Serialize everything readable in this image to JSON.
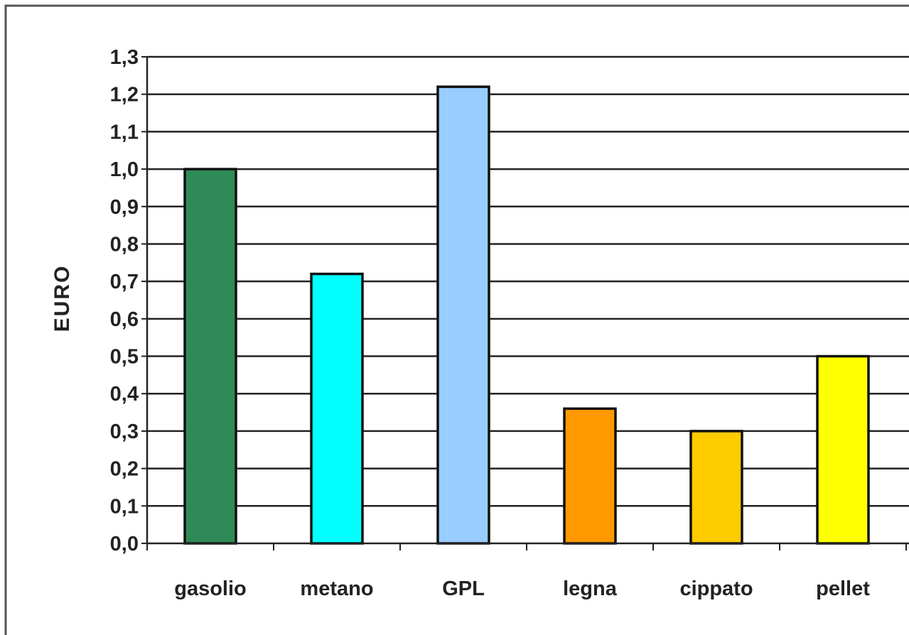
{
  "chart_data": {
    "type": "bar",
    "title": "",
    "xlabel": "",
    "ylabel": "EURO",
    "categories": [
      "gasolio",
      "metano",
      "GPL",
      "legna",
      "cippato",
      "pellet"
    ],
    "values": [
      1.0,
      0.72,
      1.22,
      0.36,
      0.3,
      0.5
    ],
    "colors": [
      "#2e8b57",
      "#00ffff",
      "#99ccff",
      "#ff9900",
      "#ffcc00",
      "#ffff00"
    ],
    "ylim": [
      0,
      1.3
    ],
    "yticks": [
      0.0,
      0.1,
      0.2,
      0.3,
      0.4,
      0.5,
      0.6,
      0.7,
      0.8,
      0.9,
      1.0,
      1.1,
      1.2,
      1.3
    ],
    "ytick_labels": [
      "0,0",
      "0,1",
      "0,2",
      "0,3",
      "0,4",
      "0,5",
      "0,6",
      "0,7",
      "0,8",
      "0,9",
      "1,0",
      "1,1",
      "1,2",
      "1,3"
    ],
    "grid": true,
    "legend": "none",
    "border_color": "#555555",
    "bar_outline_color": "#111111"
  }
}
